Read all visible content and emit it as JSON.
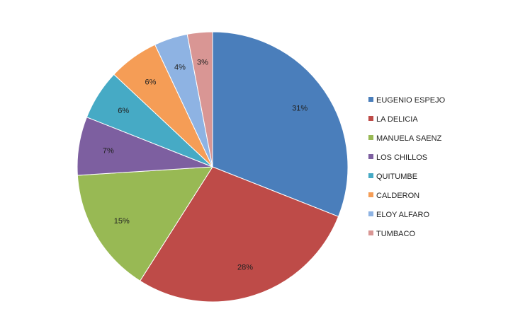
{
  "chart_data": {
    "type": "pie",
    "title": "",
    "categories": [
      "EUGENIO ESPEJO",
      "LA DELICIA",
      "MANUELA SAENZ",
      "LOS CHILLOS",
      "QUITUMBE",
      "CALDERON",
      "ELOY ALFARO",
      "TUMBACO"
    ],
    "values": [
      31,
      28,
      15,
      7,
      6,
      6,
      4,
      3
    ],
    "labels": [
      "31%",
      "28%",
      "15%",
      "7%",
      "6%",
      "6%",
      "4%",
      "3%"
    ],
    "colors": [
      "#4A7EBB",
      "#BE4B48",
      "#98B954",
      "#7D5FA0",
      "#46AAC5",
      "#F59D56",
      "#8EB3E3",
      "#D99694"
    ],
    "legend_position": "right"
  }
}
